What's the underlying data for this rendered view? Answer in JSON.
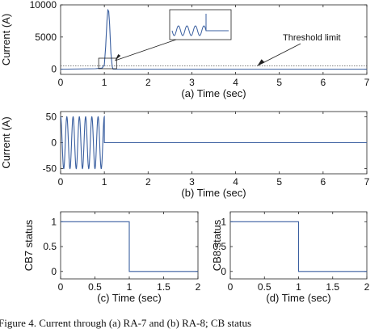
{
  "chart_data": [
    {
      "id": "a",
      "type": "line",
      "xlabel": "(a) Time (sec)",
      "ylabel": "Current (A)",
      "xlim": [
        0,
        7
      ],
      "ylim": [
        -800,
        10000
      ],
      "xticks": [
        0,
        1,
        2,
        3,
        4,
        5,
        6,
        7
      ],
      "yticks": [
        0,
        5000,
        10000
      ],
      "annotation": "Threshold limit",
      "threshold": 500,
      "series": [
        {
          "name": "",
          "points": [
            [
              0,
              0
            ],
            [
              0.8,
              80
            ],
            [
              0.95,
              180
            ],
            [
              1.0,
              700
            ],
            [
              1.03,
              3500
            ],
            [
              1.06,
              7500
            ],
            [
              1.08,
              9200
            ],
            [
              1.1,
              9000
            ],
            [
              1.12,
              7000
            ],
            [
              1.15,
              2500
            ],
            [
              1.18,
              400
            ],
            [
              1.2,
              0
            ],
            [
              7,
              0
            ]
          ]
        }
      ]
    },
    {
      "id": "b",
      "type": "line",
      "xlabel": "(b) Time (sec)",
      "ylabel": "Current (A)",
      "xlim": [
        0,
        7
      ],
      "ylim": [
        -60,
        60
      ],
      "xticks": [
        0,
        1,
        2,
        3,
        4,
        5,
        6,
        7
      ],
      "yticks": [
        -50,
        0,
        50
      ],
      "series": [
        {
          "name": "",
          "waveform": "sine",
          "amplitude": 50,
          "cycles": 7,
          "x_start": 0,
          "x_end": 1,
          "after": 0
        }
      ]
    },
    {
      "id": "c",
      "type": "line",
      "xlabel": "(c) Time (sec)",
      "ylabel": "CB7 status",
      "xlim": [
        0,
        2
      ],
      "ylim": [
        -0.15,
        1.2
      ],
      "xticks": [
        0,
        0.5,
        1,
        1.5,
        2
      ],
      "xtick_labels": [
        "0",
        "0.5",
        "1",
        "1.5",
        "2"
      ],
      "yticks": [
        0,
        0.5,
        1
      ],
      "series": [
        {
          "name": "",
          "points": [
            [
              0,
              1
            ],
            [
              1,
              1
            ],
            [
              1,
              0
            ],
            [
              2,
              0
            ]
          ]
        }
      ]
    },
    {
      "id": "d",
      "type": "line",
      "xlabel": "(d) Time (sec)",
      "ylabel": "CB8 status",
      "xlim": [
        0,
        2
      ],
      "ylim": [
        -0.15,
        1.2
      ],
      "xticks": [
        0,
        0.5,
        1,
        1.5,
        2
      ],
      "xtick_labels": [
        "0",
        "0.5",
        "1",
        "1.5",
        "2"
      ],
      "yticks": [
        0,
        0.5,
        1
      ],
      "series": [
        {
          "name": "",
          "points": [
            [
              0,
              1
            ],
            [
              1,
              1
            ],
            [
              1,
              0
            ],
            [
              2,
              0
            ]
          ]
        }
      ]
    }
  ],
  "caption": "Figure 4. Current through (a) RA-7 and (b) RA-8; CB status",
  "colors": {
    "line": "#3a5fa0",
    "threshold": "#555555",
    "axis": "#222222"
  }
}
